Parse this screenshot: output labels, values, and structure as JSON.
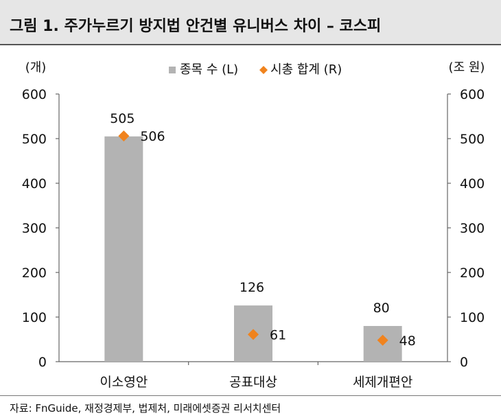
{
  "header": {
    "title": "그림 1. 주가누르기 방지법 안건별 유니버스 차이 – 코스피"
  },
  "chart_data": {
    "type": "bar",
    "categories": [
      "이소영안",
      "공표대상",
      "세제개편안"
    ],
    "series": [
      {
        "name": "종목 수 (L)",
        "type": "bar",
        "axis": "left",
        "values": [
          505,
          126,
          80
        ],
        "color": "#b3b3b3"
      },
      {
        "name": "시총 합계 (R)",
        "type": "scatter",
        "marker": "diamond",
        "axis": "right",
        "values": [
          506,
          61,
          48
        ],
        "color": "#f0831e"
      }
    ],
    "y_left": {
      "unit_label": "(개)",
      "ylim": [
        0,
        600
      ],
      "ticks": [
        "0",
        "100",
        "200",
        "300",
        "400",
        "500",
        "600"
      ]
    },
    "y_right": {
      "unit_label": "(조 원)",
      "ylim": [
        0,
        600
      ],
      "ticks": [
        "0",
        "100",
        "200",
        "300",
        "400",
        "500",
        "600"
      ]
    },
    "legend_position": "top-center",
    "grid": false
  },
  "footer": {
    "source": "자료: FnGuide, 재정경제부, 법제처, 미래에셋증권 리서치센터"
  }
}
